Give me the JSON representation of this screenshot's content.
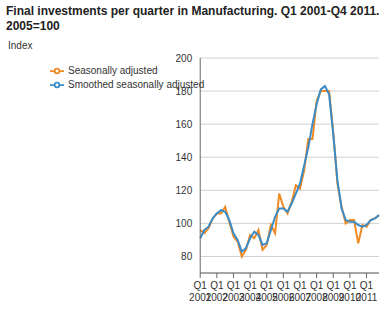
{
  "chart_data": {
    "type": "line",
    "title": "Final investments per quarter in Manufacturing. Q1 2001-Q4 2011.",
    "subtitle": "2005=100",
    "y_label": "Index",
    "categories": [
      "Q1 2001",
      null,
      null,
      null,
      "Q1 2002",
      null,
      null,
      null,
      "Q1 2003",
      null,
      null,
      null,
      "Q1 2004",
      null,
      null,
      null,
      "Q1 2005",
      null,
      null,
      null,
      "Q1 2006",
      null,
      null,
      null,
      "Q1 2007",
      null,
      null,
      null,
      "Q1 2008",
      null,
      null,
      null,
      "Q1 2009",
      null,
      null,
      null,
      "Q1 2010",
      null,
      null,
      null,
      "Q1 2011",
      null,
      null,
      null
    ],
    "series": [
      {
        "name": "Seasonally adjusted",
        "color": "#f08a24",
        "values": [
          96,
          94,
          97,
          103,
          106,
          106,
          110,
          101,
          92,
          89,
          80,
          84,
          93,
          91,
          96,
          84,
          87,
          99,
          94,
          118,
          110,
          106,
          113,
          123,
          121,
          132,
          151,
          151,
          174,
          180,
          180,
          180,
          155,
          124,
          110,
          100,
          102,
          102,
          88,
          99,
          98,
          102,
          103,
          105
        ]
      },
      {
        "name": "Smoothed seasonally adjusted",
        "color": "#3b8cc6",
        "values": [
          91,
          96,
          98,
          103,
          106,
          108,
          107,
          102,
          94,
          90,
          83,
          85,
          91,
          95,
          93,
          87,
          88,
          96,
          104,
          109,
          109,
          107,
          112,
          118,
          124,
          135,
          146,
          160,
          172,
          181,
          183,
          178,
          154,
          126,
          109,
          102,
          101,
          101,
          99,
          98,
          99,
          102,
          103,
          105
        ]
      }
    ],
    "ylim": [
      70,
      200
    ],
    "yticks": [
      80,
      100,
      120,
      140,
      160,
      180,
      200
    ],
    "grid": true,
    "legend": "upper left"
  }
}
